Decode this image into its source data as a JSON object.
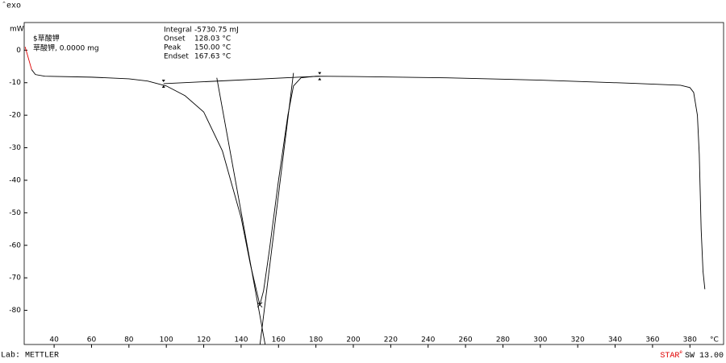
{
  "chart_data": {
    "type": "line",
    "exo_label": "ˆexo",
    "y_label": "mW",
    "x_unit": "°C",
    "annotations": [
      "$草酸钾",
      "草酸钾, 0.0000 mg"
    ],
    "results": [
      {
        "label": "Integral",
        "text": "-5730.75 mJ"
      },
      {
        "label": "Onset",
        "text": "128.03 °C"
      },
      {
        "label": "Peak",
        "text": "150.00 °C"
      },
      {
        "label": "Endset",
        "text": "167.63 °C"
      }
    ],
    "footer_left": "Lab: METTLER",
    "software": {
      "name": "STAR",
      "sup": "e",
      "version": "SW 13.00"
    },
    "xlim": [
      24,
      398
    ],
    "ylim": [
      -90.5,
      8.5
    ],
    "xticks": [
      40,
      60,
      80,
      100,
      120,
      140,
      160,
      180,
      200,
      220,
      240,
      260,
      280,
      300,
      320,
      340,
      360,
      380
    ],
    "yticks": [
      0,
      -10,
      -20,
      -30,
      -40,
      -50,
      -60,
      -70,
      -80
    ],
    "series": [
      {
        "color": "#e00000",
        "x": [
          24.5,
          26,
          28
        ],
        "values": [
          1,
          -2,
          -6
        ]
      },
      {
        "color": "#000000",
        "x": [
          28,
          30,
          35,
          60,
          80,
          90,
          100,
          110,
          120,
          130,
          140,
          145,
          150,
          152,
          155,
          160,
          165,
          168,
          172,
          180,
          200,
          250,
          300,
          350,
          375,
          380,
          382,
          384,
          385,
          386,
          387,
          388
        ],
        "values": [
          -6,
          -7.5,
          -8,
          -8.3,
          -8.8,
          -9.5,
          -11,
          -14,
          -19,
          -31,
          -51.5,
          -66,
          -78.3,
          -74,
          -62,
          -40,
          -20,
          -11,
          -8.5,
          -8,
          -8.1,
          -8.5,
          -9.2,
          -10.2,
          -10.8,
          -11.5,
          -13,
          -20,
          -32,
          -55,
          -68,
          -73.5
        ]
      },
      {
        "color": "#000000",
        "x": [
          98.5,
          182
        ],
        "values": [
          -10.3,
          -8
        ]
      },
      {
        "color": "#000000",
        "x": [
          127,
          153
        ],
        "values": [
          -8.5,
          -91
        ]
      },
      {
        "color": "#000000",
        "x": [
          168,
          150
        ],
        "values": [
          -7,
          -91
        ]
      }
    ]
  }
}
